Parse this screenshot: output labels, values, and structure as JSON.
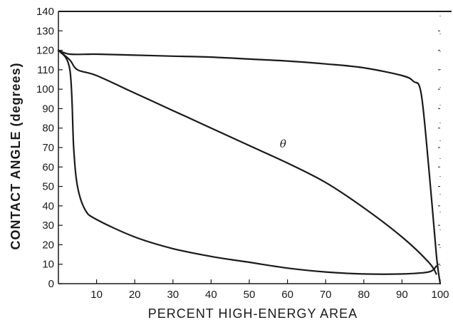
{
  "chart_data": {
    "type": "line",
    "xlabel": "PERCENT HIGH-ENERGY AREA",
    "ylabel": "CONTACT ANGLE (degrees)",
    "xlim": [
      0,
      100
    ],
    "ylim": [
      0,
      140
    ],
    "xticks": [
      10,
      20,
      30,
      40,
      50,
      60,
      70,
      80,
      90,
      100
    ],
    "yticks": [
      0,
      10,
      20,
      30,
      40,
      50,
      60,
      70,
      80,
      90,
      100,
      110,
      120,
      130,
      140
    ],
    "grid": false,
    "annotations": [
      {
        "text": "θ",
        "x": 58,
        "y": 70
      }
    ],
    "series": [
      {
        "x": [
          0,
          3,
          10,
          20,
          30,
          40,
          50,
          60,
          70,
          80,
          90,
          93,
          95,
          97,
          99,
          100
        ],
        "y": [
          120,
          118,
          118,
          117.5,
          117,
          116.5,
          115.5,
          114.5,
          113,
          111,
          107,
          104,
          98,
          60,
          15,
          0
        ]
      },
      {
        "x": [
          0,
          3,
          5,
          10,
          20,
          30,
          40,
          50,
          60,
          70,
          80,
          90,
          97,
          99
        ],
        "y": [
          120,
          115,
          110,
          107,
          98,
          89,
          80,
          71,
          62,
          52,
          39,
          24,
          11,
          5
        ]
      },
      {
        "x": [
          0,
          3,
          4,
          5,
          7,
          10,
          20,
          30,
          40,
          50,
          60,
          70,
          80,
          90,
          97,
          99
        ],
        "y": [
          120,
          110,
          70,
          50,
          38,
          33,
          24,
          18,
          14,
          11,
          8,
          6,
          5,
          5,
          6,
          9
        ]
      }
    ]
  }
}
